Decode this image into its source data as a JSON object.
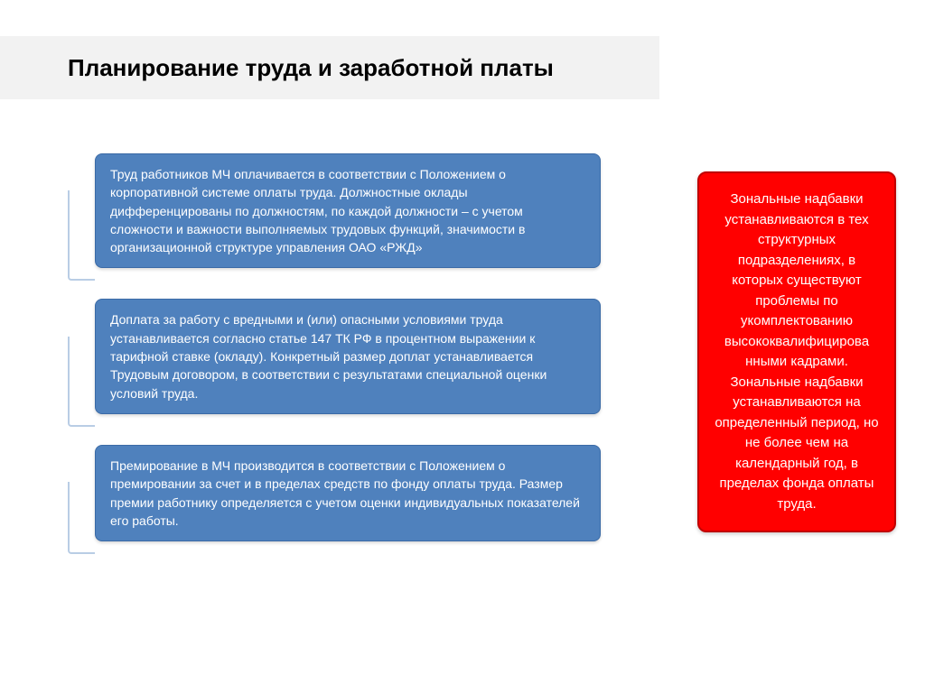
{
  "title": "Планирование труда и заработной платы",
  "colors": {
    "title_bg": "#f2f2f2",
    "blue_box_bg": "#4f81bd",
    "blue_box_border": "#3a6aa6",
    "bracket": "#b9cde5",
    "red_box_bg": "#ff0000",
    "red_box_border": "#c00000",
    "text_white": "#ffffff",
    "text_black": "#000000"
  },
  "layout": {
    "blue_box_fontsize": 14,
    "red_box_fontsize": 15,
    "title_fontsize": 26,
    "blue_box_radius": 8,
    "red_box_radius": 10
  },
  "blue_blocks": [
    {
      "text": "Труд работников МЧ оплачивается в соответствии с Положением о корпоративной системе оплаты труда. Должностные оклады дифференцированы по должностям, по каждой должности – с учетом сложности и важности выполняемых трудовых функций, значимости в организационной структуре управления ОАО «РЖД»",
      "bracket_height": 100
    },
    {
      "text": "Доплата за работу с вредными и (или) опасными условиями труда устанавливается согласно статье 147 ТК РФ в процентном выражении к тарифной ставке (окладу). Конкретный размер доплат устанавливается Трудовым договором, в соответствии с результатами специальной оценки условий труда.",
      "bracket_height": 100
    },
    {
      "text": "Премирование в МЧ производится в соответствии с Положением о премировании за счет и в пределах средств по фонду оплаты труда. Размер премии работнику определяется с учетом оценки индивидуальных показателей его работы.",
      "bracket_height": 80
    }
  ],
  "red_block": {
    "text": "Зональные надбавки устанавливаются в тех структурных подразделениях, в которых существуют проблемы по укомплектованию высококвалифицирова нными кадрами. Зональные надбавки устанавливаются на определенный период, но не более чем на календарный год, в пределах фонда оплаты труда."
  }
}
